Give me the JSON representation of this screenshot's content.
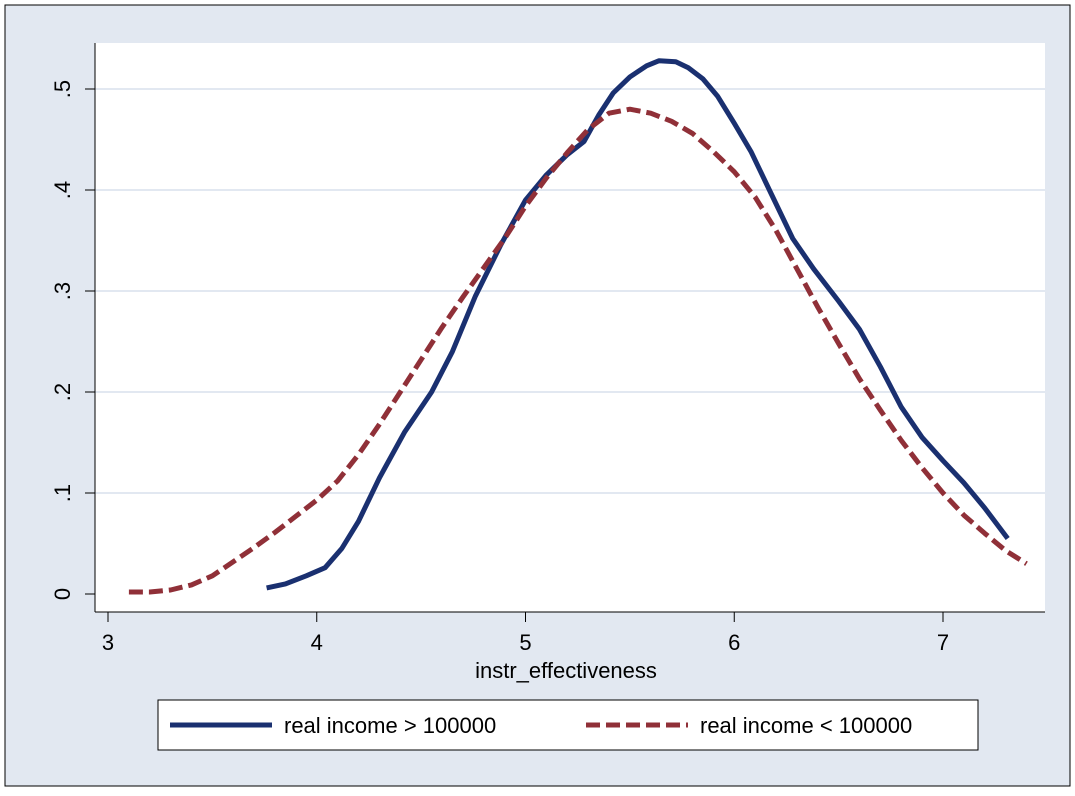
{
  "colors": {
    "page_background": "#ffffff",
    "outer_background": "#e2e8f1",
    "plot_background": "#ffffff",
    "gridline": "#e2e8f1",
    "axis": "#000000",
    "legend_background": "#ffffff",
    "legend_border": "#000000"
  },
  "chart_data": {
    "type": "line",
    "title": "",
    "xlabel": "instr_effectiveness",
    "ylabel": "",
    "xlim": [
      3,
      7.5
    ],
    "ylim": [
      0,
      0.53
    ],
    "x_ticks": [
      3,
      4,
      5,
      6,
      7
    ],
    "x_tick_labels": [
      "3",
      "4",
      "5",
      "6",
      "7"
    ],
    "y_ticks": [
      0,
      0.1,
      0.2,
      0.3,
      0.4,
      0.5
    ],
    "y_tick_labels": [
      "0",
      ".1",
      ".2",
      ".3",
      ".4",
      ".5"
    ],
    "grid": true,
    "legend_position": "bottom",
    "series": [
      {
        "name": "real income > 100000",
        "color": "#1a3070",
        "style": "solid",
        "points": [
          [
            3.76,
            0.006
          ],
          [
            3.85,
            0.01
          ],
          [
            3.95,
            0.018
          ],
          [
            4.04,
            0.026
          ],
          [
            4.12,
            0.045
          ],
          [
            4.2,
            0.072
          ],
          [
            4.3,
            0.115
          ],
          [
            4.42,
            0.16
          ],
          [
            4.55,
            0.2
          ],
          [
            4.65,
            0.24
          ],
          [
            4.76,
            0.295
          ],
          [
            4.88,
            0.345
          ],
          [
            5.0,
            0.39
          ],
          [
            5.1,
            0.415
          ],
          [
            5.2,
            0.435
          ],
          [
            5.28,
            0.448
          ],
          [
            5.35,
            0.474
          ],
          [
            5.42,
            0.496
          ],
          [
            5.5,
            0.512
          ],
          [
            5.58,
            0.523
          ],
          [
            5.64,
            0.528
          ],
          [
            5.72,
            0.527
          ],
          [
            5.78,
            0.521
          ],
          [
            5.85,
            0.51
          ],
          [
            5.92,
            0.493
          ],
          [
            6.0,
            0.466
          ],
          [
            6.08,
            0.438
          ],
          [
            6.18,
            0.395
          ],
          [
            6.28,
            0.352
          ],
          [
            6.38,
            0.322
          ],
          [
            6.5,
            0.29
          ],
          [
            6.6,
            0.262
          ],
          [
            6.7,
            0.225
          ],
          [
            6.8,
            0.185
          ],
          [
            6.9,
            0.155
          ],
          [
            7.0,
            0.132
          ],
          [
            7.1,
            0.11
          ],
          [
            7.2,
            0.085
          ],
          [
            7.31,
            0.055
          ]
        ]
      },
      {
        "name": "real income < 100000",
        "color": "#903038",
        "style": "dashed",
        "points": [
          [
            3.1,
            0.002
          ],
          [
            3.2,
            0.002
          ],
          [
            3.3,
            0.004
          ],
          [
            3.4,
            0.009
          ],
          [
            3.5,
            0.018
          ],
          [
            3.6,
            0.032
          ],
          [
            3.7,
            0.046
          ],
          [
            3.8,
            0.061
          ],
          [
            3.9,
            0.077
          ],
          [
            4.0,
            0.093
          ],
          [
            4.1,
            0.112
          ],
          [
            4.2,
            0.138
          ],
          [
            4.3,
            0.168
          ],
          [
            4.4,
            0.2
          ],
          [
            4.5,
            0.232
          ],
          [
            4.6,
            0.264
          ],
          [
            4.7,
            0.294
          ],
          [
            4.8,
            0.323
          ],
          [
            4.9,
            0.352
          ],
          [
            5.0,
            0.384
          ],
          [
            5.1,
            0.412
          ],
          [
            5.2,
            0.437
          ],
          [
            5.3,
            0.46
          ],
          [
            5.4,
            0.476
          ],
          [
            5.5,
            0.48
          ],
          [
            5.6,
            0.476
          ],
          [
            5.7,
            0.468
          ],
          [
            5.8,
            0.456
          ],
          [
            5.9,
            0.438
          ],
          [
            6.0,
            0.418
          ],
          [
            6.1,
            0.393
          ],
          [
            6.2,
            0.36
          ],
          [
            6.3,
            0.322
          ],
          [
            6.4,
            0.284
          ],
          [
            6.5,
            0.248
          ],
          [
            6.6,
            0.213
          ],
          [
            6.7,
            0.182
          ],
          [
            6.8,
            0.152
          ],
          [
            6.9,
            0.125
          ],
          [
            7.0,
            0.1
          ],
          [
            7.1,
            0.078
          ],
          [
            7.2,
            0.06
          ],
          [
            7.3,
            0.043
          ],
          [
            7.4,
            0.03
          ]
        ]
      }
    ]
  }
}
